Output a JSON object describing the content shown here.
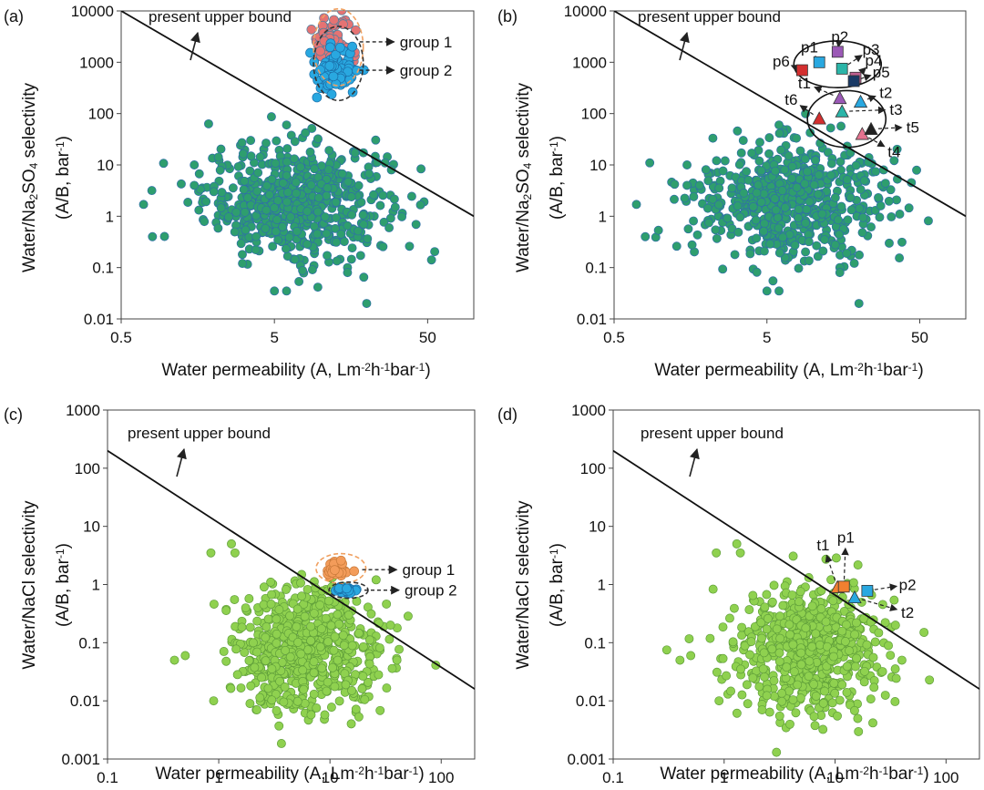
{
  "chart_data": [
    {
      "id": "a",
      "type": "scatter",
      "panel_label": "(a)",
      "xlabel_parts": [
        "Water permeability (A, Lm",
        "-2",
        "h",
        "-1",
        "bar",
        "-1",
        ")"
      ],
      "ylabel1_parts": [
        "Water/Na",
        "2",
        "SO",
        "4",
        " selectivity"
      ],
      "ylabel2_parts": [
        "(A/B, bar",
        "-1",
        ")"
      ],
      "x_scale": "log",
      "y_scale": "log",
      "xlim": [
        0.5,
        100
      ],
      "ylim": [
        0.01,
        10000
      ],
      "xticks": [
        0.5,
        5,
        50
      ],
      "xtick_labels": [
        "0.5",
        "5",
        "50"
      ],
      "yticks": [
        0.01,
        0.1,
        1,
        10,
        100,
        1000,
        10000
      ],
      "ytick_labels": [
        "0.01",
        "0.1",
        "1",
        "10",
        "100",
        "1000",
        "10000"
      ],
      "grid": false,
      "upper_bound": {
        "label": "present upper bound",
        "points": [
          [
            0.5,
            10000
          ],
          [
            100,
            1
          ]
        ]
      },
      "cloud_color": "#2e9e6e",
      "cloud_stroke": "#2f6fa8",
      "cloud_center": [
        7,
        2
      ],
      "cloud_count": 600,
      "outliers": [
        [
          0.7,
          1.7
        ],
        [
          0.8,
          0.4
        ],
        [
          1.5,
          10
        ],
        [
          1.5,
          4
        ],
        [
          29,
          8
        ],
        [
          3.5,
          30
        ],
        [
          15,
          0.1
        ],
        [
          15,
          0.08
        ],
        [
          20,
          0.02
        ],
        [
          5,
          0.035
        ],
        [
          6,
          0.035
        ],
        [
          6,
          60
        ]
      ],
      "groups": [
        {
          "name": "group 1",
          "center": [
            12.5,
            2500
          ],
          "spread": [
            0.16,
            0.55
          ],
          "count": 70,
          "color": "#e57373",
          "stroke": "#4f7f9f",
          "ring_color": "#f0a060",
          "ring_dash": true,
          "ring": [
            [
              9,
              350
            ],
            [
              19,
              11000
            ]
          ]
        },
        {
          "name": "group 2",
          "center": [
            12.5,
            700
          ],
          "spread": [
            0.14,
            0.45
          ],
          "count": 80,
          "color": "#29a8e0",
          "stroke": "#1b6ea8",
          "ring_color": "#333333",
          "ring_dash": true,
          "ring": [
            [
              9,
              180
            ],
            [
              19,
              5000
            ]
          ]
        }
      ],
      "labeled_points": [],
      "label_rings": [],
      "annotations": [
        {
          "text": "group 1",
          "target": "group 1"
        },
        {
          "text": "group 2",
          "target": "group 2"
        }
      ]
    },
    {
      "id": "b",
      "type": "scatter",
      "panel_label": "(b)",
      "xlabel_parts": [
        "Water permeability (A, Lm",
        "-2",
        "h",
        "-1",
        "bar",
        "-1",
        ")"
      ],
      "ylabel1_parts": [
        "Water/Na",
        "2",
        "SO",
        "4",
        " selectivity"
      ],
      "ylabel2_parts": [
        "(A/B, bar",
        "-1",
        ")"
      ],
      "x_scale": "log",
      "y_scale": "log",
      "xlim": [
        0.5,
        100
      ],
      "ylim": [
        0.01,
        10000
      ],
      "xticks": [
        0.5,
        5,
        50
      ],
      "xtick_labels": [
        "0.5",
        "5",
        "50"
      ],
      "yticks": [
        0.01,
        0.1,
        1,
        10,
        100,
        1000,
        10000
      ],
      "ytick_labels": [
        "0.01",
        "0.1",
        "1",
        "10",
        "100",
        "1000",
        "10000"
      ],
      "grid": false,
      "upper_bound": {
        "label": "present upper bound",
        "points": [
          [
            0.5,
            10000
          ],
          [
            100,
            1
          ]
        ]
      },
      "cloud_color": "#2e9e6e",
      "cloud_stroke": "#2f6fa8",
      "cloud_center": [
        7,
        2
      ],
      "cloud_count": 600,
      "outliers": [
        [
          0.7,
          1.7
        ],
        [
          0.8,
          0.4
        ],
        [
          1.5,
          10
        ],
        [
          1.5,
          4
        ],
        [
          29,
          8
        ],
        [
          3.5,
          30
        ],
        [
          15,
          0.1
        ],
        [
          15,
          0.08
        ],
        [
          20,
          0.02
        ],
        [
          5,
          0.035
        ],
        [
          6,
          0.035
        ],
        [
          6,
          60
        ]
      ],
      "groups": [],
      "labeled_points": [
        {
          "name": "p1",
          "x": 11,
          "y": 1000,
          "shape": "square",
          "color": "#29a8e0",
          "label_xy": [
            9.5,
            2000
          ]
        },
        {
          "name": "p2",
          "x": 14.5,
          "y": 1600,
          "shape": "square",
          "color": "#9b59b6",
          "label_xy": [
            15,
            3200
          ]
        },
        {
          "name": "p3",
          "x": 15.5,
          "y": 750,
          "shape": "square",
          "color": "#2bb5a8",
          "label_xy": [
            24,
            1800
          ]
        },
        {
          "name": "p4",
          "x": 19,
          "y": 500,
          "shape": "square",
          "color": "#c06090",
          "label_xy": [
            25,
            1100
          ]
        },
        {
          "name": "p5",
          "x": 18.5,
          "y": 430,
          "shape": "square",
          "color": "#1a3a66",
          "label_xy": [
            28,
            650
          ]
        },
        {
          "name": "p6",
          "x": 8.5,
          "y": 700,
          "shape": "square",
          "color": "#d32f2f",
          "label_xy": [
            6.2,
            1050
          ]
        },
        {
          "name": "t1",
          "x": 15,
          "y": 200,
          "shape": "triangle",
          "color": "#9b59b6",
          "label_xy": [
            8.8,
            400
          ]
        },
        {
          "name": "t2",
          "x": 20.5,
          "y": 170,
          "shape": "triangle",
          "color": "#29a8e0",
          "label_xy": [
            30,
            260
          ]
        },
        {
          "name": "t3",
          "x": 15.5,
          "y": 110,
          "shape": "triangle",
          "color": "#2bb5a8",
          "label_xy": [
            35,
            120
          ]
        },
        {
          "name": "t4",
          "x": 21,
          "y": 40,
          "shape": "triangle",
          "color": "#e57390",
          "label_xy": [
            34,
            18
          ]
        },
        {
          "name": "t5",
          "x": 24,
          "y": 50,
          "shape": "triangle",
          "color": "#222222",
          "label_xy": [
            45,
            55
          ]
        },
        {
          "name": "t6",
          "x": 11,
          "y": 80,
          "shape": "triangle",
          "color": "#d32f2f",
          "label_xy": [
            7.2,
            190
          ]
        }
      ],
      "label_rings": [
        [
          [
            7.5,
            320
          ],
          [
            28,
            2600
          ]
        ],
        [
          [
            9.2,
            22
          ],
          [
            30,
            280
          ]
        ]
      ],
      "annotations": []
    },
    {
      "id": "c",
      "type": "scatter",
      "panel_label": "(c)",
      "xlabel_parts": [
        "Water permeability (A, Lm",
        "-2",
        "h",
        "-1",
        "bar",
        "-1",
        ")"
      ],
      "ylabel1_parts": [
        "Water/NaCl selectivity"
      ],
      "ylabel2_parts": [
        "(A/B, bar",
        "-1",
        ")"
      ],
      "x_scale": "log",
      "y_scale": "log",
      "xlim": [
        0.1,
        200
      ],
      "ylim": [
        0.001,
        1000
      ],
      "xticks": [
        0.1,
        1,
        10,
        100
      ],
      "xtick_labels": [
        "0.1",
        "1",
        "10",
        "100"
      ],
      "yticks": [
        0.001,
        0.01,
        0.1,
        1,
        10,
        100,
        1000
      ],
      "ytick_labels": [
        "0.001",
        "0.01",
        "0.1",
        "1",
        "10",
        "100",
        "1000"
      ],
      "grid": false,
      "upper_bound": {
        "label": "present upper bound",
        "points": [
          [
            0.1,
            200
          ],
          [
            200,
            0.016
          ]
        ]
      },
      "cloud_color": "#8fd14f",
      "cloud_stroke": "#5f9e3a",
      "cloud_center": [
        6,
        0.08
      ],
      "cloud_count": 650,
      "outliers": [
        [
          0.85,
          3.5
        ],
        [
          1.3,
          5
        ],
        [
          1.4,
          3.5
        ],
        [
          0.5,
          0.06
        ],
        [
          0.9,
          0.01
        ],
        [
          2.2,
          0.007
        ],
        [
          35,
          0.2
        ],
        [
          40,
          0.05
        ],
        [
          0.4,
          0.05
        ]
      ],
      "groups": [
        {
          "name": "group 1",
          "center": [
            12,
            1.8
          ],
          "spread": [
            0.1,
            0.12
          ],
          "count": 45,
          "color": "#f39c5a",
          "stroke": "#c97a3a",
          "ring_color": "#f0a060",
          "ring_dash": true,
          "ring": [
            [
              7.5,
              1.05
            ],
            [
              21,
              3.4
            ]
          ]
        },
        {
          "name": "group 2",
          "center": [
            14,
            0.8
          ],
          "spread": [
            0.09,
            0.05
          ],
          "count": 40,
          "color": "#29a8e0",
          "stroke": "#1b6ea8",
          "ring_color": "#333333",
          "ring_dash": true,
          "ring": [
            [
              9.8,
              0.58
            ],
            [
              22,
              1.1
            ]
          ]
        }
      ],
      "labeled_points": [],
      "label_rings": [],
      "annotations": [
        {
          "text": "group 1",
          "target": "group 1"
        },
        {
          "text": "group 2",
          "target": "group 2"
        }
      ]
    },
    {
      "id": "d",
      "type": "scatter",
      "panel_label": "(d)",
      "xlabel_parts": [
        "Water permeability (A, Lm",
        "-2",
        "h",
        "-1",
        "bar",
        "-1",
        ")"
      ],
      "ylabel1_parts": [
        "Water/NaCl selectivity"
      ],
      "ylabel2_parts": [
        "(A/B, bar",
        "-1",
        ")"
      ],
      "x_scale": "log",
      "y_scale": "log",
      "xlim": [
        0.1,
        200
      ],
      "ylim": [
        0.001,
        1000
      ],
      "xticks": [
        0.1,
        1,
        10,
        100
      ],
      "xtick_labels": [
        "0.1",
        "1",
        "10",
        "100"
      ],
      "yticks": [
        0.001,
        0.01,
        0.1,
        1,
        10,
        100,
        1000
      ],
      "ytick_labels": [
        "0.001",
        "0.01",
        "0.1",
        "1",
        "10",
        "100",
        "1000"
      ],
      "grid": false,
      "upper_bound": {
        "label": "present upper bound",
        "points": [
          [
            0.1,
            200
          ],
          [
            200,
            0.016
          ]
        ]
      },
      "cloud_color": "#8fd14f",
      "cloud_stroke": "#5f9e3a",
      "cloud_center": [
        6,
        0.08
      ],
      "cloud_count": 650,
      "outliers": [
        [
          0.85,
          3.5
        ],
        [
          1.3,
          5
        ],
        [
          1.4,
          3.5
        ],
        [
          0.5,
          0.06
        ],
        [
          0.9,
          0.01
        ],
        [
          2.2,
          0.007
        ],
        [
          35,
          0.2
        ],
        [
          40,
          0.05
        ],
        [
          0.4,
          0.05
        ]
      ],
      "groups": [],
      "labeled_points": [
        {
          "name": "t1",
          "x": 10.5,
          "y": 0.9,
          "shape": "triangle",
          "color": "#f08030",
          "label_xy": [
            7.8,
            4.8
          ]
        },
        {
          "name": "p1",
          "x": 12,
          "y": 0.92,
          "shape": "square",
          "color": "#f08030",
          "label_xy": [
            12.5,
            6.5
          ]
        },
        {
          "name": "p2",
          "x": 19.5,
          "y": 0.78,
          "shape": "square",
          "color": "#29a8e0",
          "label_xy": [
            45,
            1.0
          ]
        },
        {
          "name": "t2",
          "x": 15,
          "y": 0.6,
          "shape": "triangle",
          "color": "#29a8e0",
          "label_xy": [
            45,
            0.33
          ]
        }
      ],
      "label_rings": [],
      "annotations": []
    }
  ]
}
